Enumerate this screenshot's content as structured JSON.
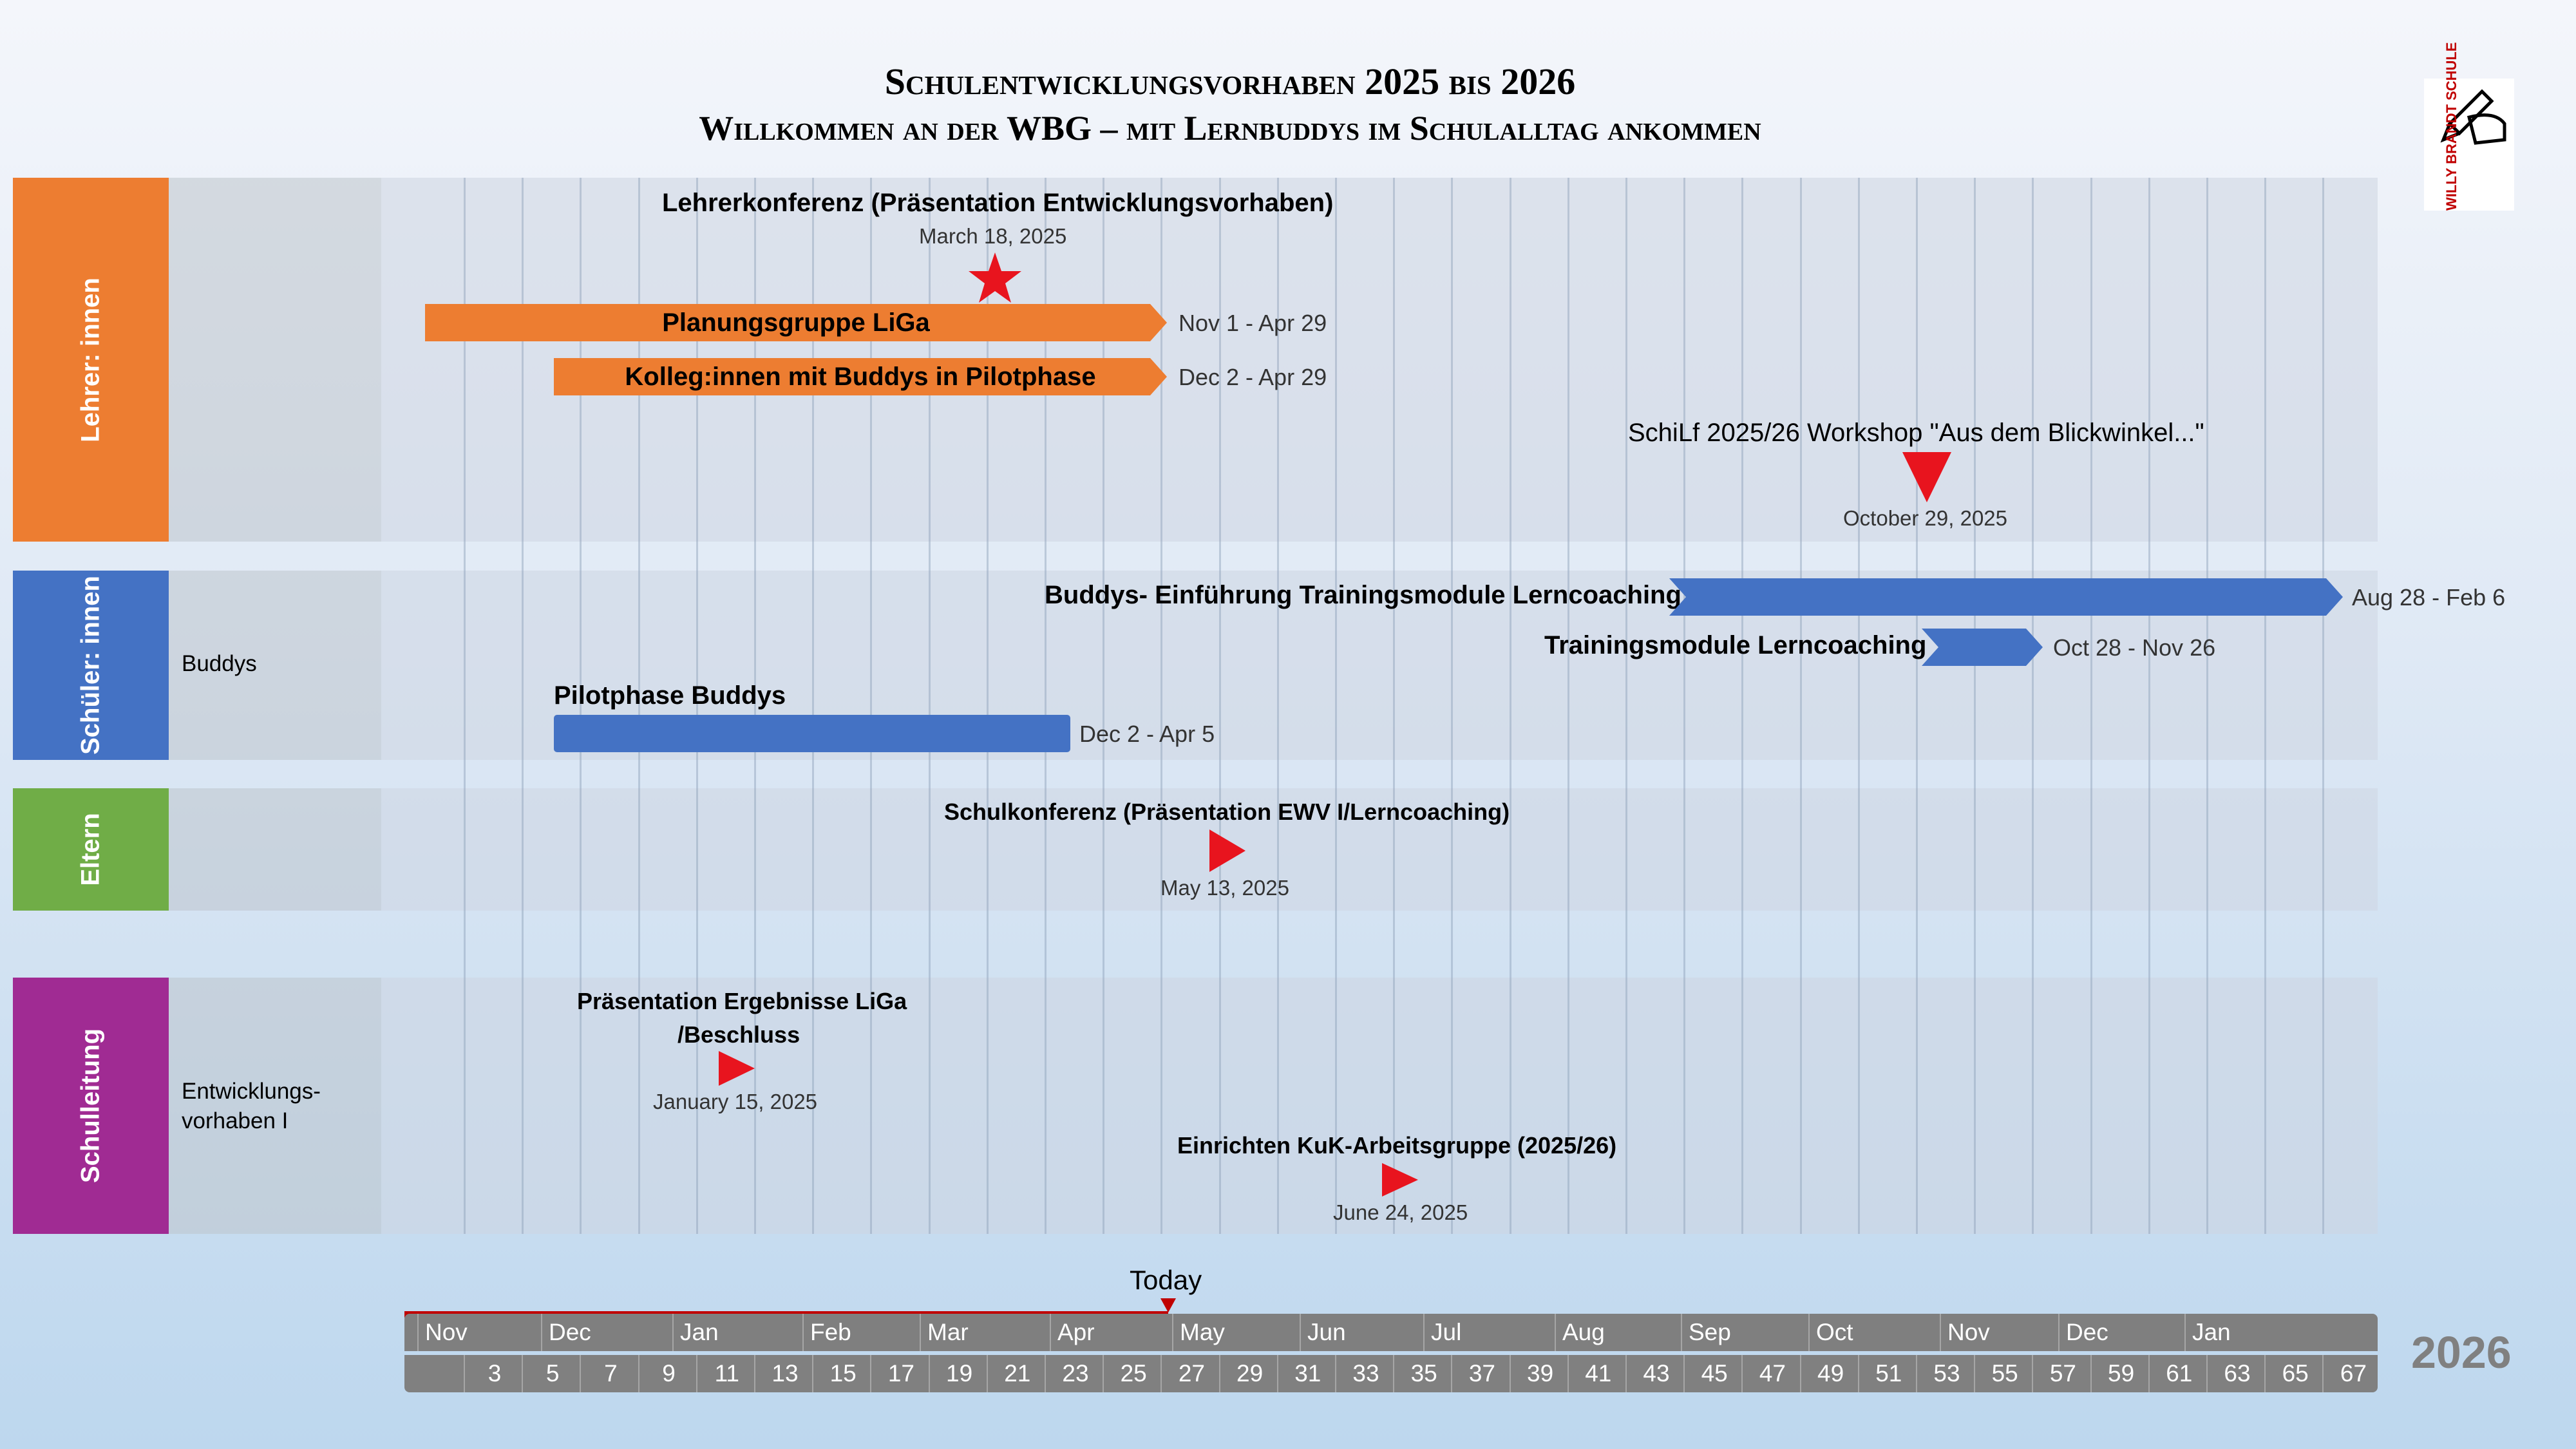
{
  "header": {
    "title_line1": "Schulentwicklungsvorhaben 2025 bis 2026",
    "title_line2": "Willkommen an der WBG – mit Lernbuddys im Schulalltag ankommen",
    "logo_text": "WILLY BRANDT SCHULE"
  },
  "lanes": {
    "lehrer": {
      "label": "Lehrer: innen",
      "color": "#ed7d31"
    },
    "schueler": {
      "label": "Schüler: innen",
      "color": "#4472c4",
      "sublabel": "Buddys"
    },
    "eltern": {
      "label": "Eltern",
      "color": "#70ad47"
    },
    "schulleitung": {
      "label": "Schulleitung",
      "color": "#a02b93",
      "sublabel_line1": "Entwicklungs-",
      "sublabel_line2": "vorhaben I"
    }
  },
  "tasks": {
    "planungsgruppe": {
      "label": "Planungsgruppe LiGa",
      "range": "Nov 1 - Apr 29"
    },
    "kolleg": {
      "label": "Kolleg:innen mit Buddys in Pilotphase",
      "range": "Dec 2 - Apr 29"
    },
    "buddys_einf": {
      "label": "Buddys- Einführung Trainingsmodule Lerncoaching",
      "range": "Aug 28 - Feb 6"
    },
    "trainingsmodule": {
      "label": "Trainingsmodule Lerncoaching",
      "range": "Oct 28 - Nov 26"
    },
    "pilotphase": {
      "label": "Pilotphase Buddys",
      "range": "Dec 2 - Apr 5"
    }
  },
  "milestones": {
    "lehrerkonferenz": {
      "label": "Lehrerkonferenz (Präsentation Entwicklungsvorhaben)",
      "date": "March 18, 2025",
      "shape": "star",
      "color": "#e8141e"
    },
    "schilf": {
      "label": "SchiLf 2025/26 Workshop \"Aus dem Blickwinkel...\"",
      "date": "October 29, 2025",
      "shape": "triangle-down",
      "color": "#e8141e"
    },
    "schulkonferenz": {
      "label": "Schulkonferenz (Präsentation EWV I/Lerncoaching)",
      "date": "May 13, 2025",
      "shape": "triangle-right",
      "color": "#e8141e"
    },
    "praesentation_line1": "Präsentation Ergebnisse LiGa",
    "praesentation_line2": "/Beschluss",
    "praesentation_date": "January 15, 2025",
    "einrichten": {
      "label": "Einrichten KuK-Arbeitsgruppe (2025/26)",
      "date": "June 24, 2025"
    }
  },
  "timeline": {
    "today_label": "Today",
    "year_label": "2026",
    "months": [
      "Nov",
      "Dec",
      "Jan",
      "Feb",
      "Mar",
      "Apr",
      "May",
      "Jun",
      "Jul",
      "Aug",
      "Sep",
      "Oct",
      "Nov",
      "Dec",
      "Jan"
    ],
    "weeks": [
      "3",
      "5",
      "7",
      "9",
      "11",
      "13",
      "15",
      "17",
      "19",
      "21",
      "23",
      "25",
      "27",
      "29",
      "31",
      "33",
      "35",
      "37",
      "39",
      "41",
      "43",
      "45",
      "47",
      "49",
      "51",
      "53",
      "55",
      "57",
      "59",
      "61",
      "63",
      "65",
      "67"
    ],
    "progress_color": "#c00000"
  }
}
